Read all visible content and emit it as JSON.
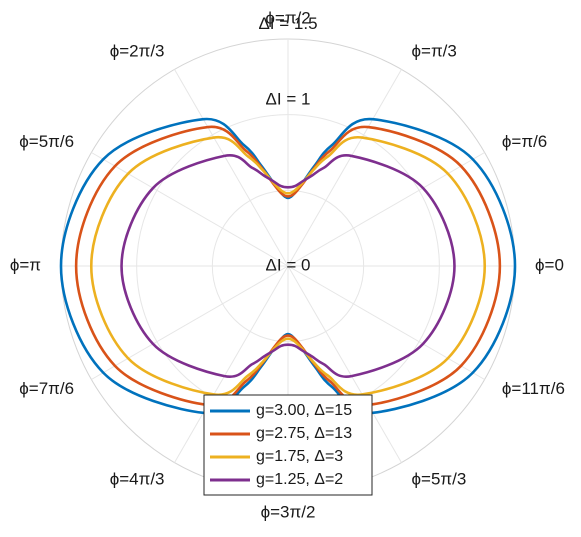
{
  "chart_data": {
    "type": "line",
    "coordinate_system": "polar",
    "grid": true,
    "legend_placement": "bottom-center",
    "r_range": [
      0,
      1.5
    ],
    "angular_tick_labels": [
      "ϕ=0",
      "ϕ=π/6",
      "ϕ=π/3",
      "ϕ=π/2",
      "ϕ=2π/3",
      "ϕ=5π/6",
      "ϕ=π",
      "ϕ=7π/6",
      "ϕ=4π/3",
      "ϕ=3π/2",
      "ϕ=5π/3",
      "ϕ=11π/6"
    ],
    "radial_tick_labels": [
      "ΔI = 0",
      "ΔI = 1",
      "ΔI = 1.5"
    ],
    "radial_tick_values": [
      0,
      1,
      1.5
    ],
    "theta": [
      0,
      0.524,
      1.047,
      1.222,
      1.309,
      1.396,
      1.484,
      1.571,
      1.658,
      1.745,
      1.833,
      1.92,
      2.094,
      2.618,
      3.142,
      3.665,
      4.189,
      4.363,
      4.451,
      4.538,
      4.625,
      4.712,
      4.8,
      4.887,
      4.974,
      5.061,
      5.236,
      5.76,
      6.283
    ],
    "series": [
      {
        "name": "g=3.00, Δ=15",
        "color": "#0072BD",
        "r": [
          1.5,
          1.41,
          1.12,
          0.85,
          0.69,
          0.56,
          0.48,
          0.45,
          0.48,
          0.56,
          0.69,
          0.85,
          1.12,
          1.41,
          1.5,
          1.41,
          1.12,
          0.85,
          0.69,
          0.56,
          0.48,
          0.45,
          0.48,
          0.56,
          0.69,
          0.85,
          1.12,
          1.41,
          1.5
        ]
      },
      {
        "name": "g=2.75, Δ=13",
        "color": "#D95319",
        "r": [
          1.4,
          1.32,
          1.06,
          0.81,
          0.67,
          0.55,
          0.48,
          0.46,
          0.48,
          0.55,
          0.67,
          0.81,
          1.06,
          1.32,
          1.4,
          1.32,
          1.06,
          0.81,
          0.67,
          0.55,
          0.48,
          0.46,
          0.48,
          0.55,
          0.67,
          0.81,
          1.06,
          1.32,
          1.4
        ]
      },
      {
        "name": "g=1.75, Δ=3",
        "color": "#EDB120",
        "r": [
          1.3,
          1.22,
          0.98,
          0.77,
          0.66,
          0.56,
          0.5,
          0.48,
          0.5,
          0.56,
          0.66,
          0.77,
          0.98,
          1.22,
          1.3,
          1.22,
          0.98,
          0.77,
          0.66,
          0.56,
          0.5,
          0.48,
          0.5,
          0.56,
          0.66,
          0.77,
          0.98,
          1.22,
          1.3
        ]
      },
      {
        "name": "g=1.25, Δ=2",
        "color": "#7E2F8E",
        "r": [
          1.1,
          1.03,
          0.84,
          0.69,
          0.62,
          0.57,
          0.53,
          0.52,
          0.53,
          0.57,
          0.62,
          0.69,
          0.84,
          1.03,
          1.1,
          1.03,
          0.84,
          0.69,
          0.62,
          0.57,
          0.53,
          0.52,
          0.53,
          0.57,
          0.62,
          0.69,
          0.84,
          1.03,
          1.1
        ]
      }
    ]
  }
}
